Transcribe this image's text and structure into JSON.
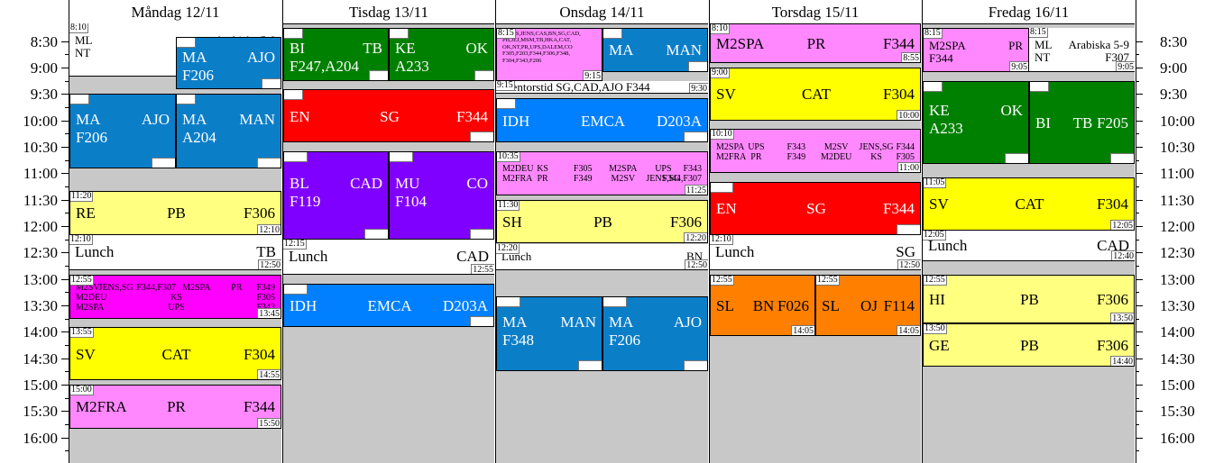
{
  "days": [
    {
      "label": "Måndag 12/11"
    },
    {
      "label": "Tisdag 13/11"
    },
    {
      "label": "Onsdag 14/11"
    },
    {
      "label": "Torsdag 15/11"
    },
    {
      "label": "Fredag 16/11"
    }
  ],
  "times": [
    "8:30",
    "9:00",
    "9:30",
    "10:00",
    "10:30",
    "11:00",
    "11:30",
    "12:00",
    "12:30",
    "13:00",
    "13:30",
    "14:00",
    "14:30",
    "15:00",
    "15:30",
    "16:00"
  ],
  "colors": {
    "blue": "#0b7ec8",
    "green": "#008000",
    "red": "#ff0000",
    "pink": "#ff88ff",
    "yellow": "#ffff80",
    "brightyellow": "#ffff00",
    "purple": "#8000ff",
    "magenta": "#ff00ff",
    "azure": "#0080ff",
    "orange": "#ff8000",
    "white": "#ffffff"
  },
  "events": [
    {
      "day": 0,
      "start": "8:10",
      "end": "9:10",
      "color": "white",
      "lines": [
        {
          "c": [
            "ML",
            "Arabiska 5-9"
          ]
        },
        {
          "c": [
            "NT",
            "F307"
          ]
        }
      ],
      "size": "m"
    },
    {
      "day": 0,
      "start": "8:25",
      "end": "9:25",
      "color": "blue",
      "lines": [
        {
          "c": [
            "MA",
            "AJO"
          ]
        },
        {
          "c": [
            "F206"
          ]
        }
      ],
      "size": "l",
      "half": "right"
    },
    {
      "day": 0,
      "start": "9:30",
      "end": "10:55",
      "color": "blue",
      "lines": [
        {
          "c": [
            "MA",
            "AJO"
          ]
        },
        {
          "c": [
            "F206"
          ]
        }
      ],
      "size": "l",
      "half": "left"
    },
    {
      "day": 0,
      "start": "9:30",
      "end": "10:55",
      "color": "blue",
      "lines": [
        {
          "c": [
            "MA",
            "MAN"
          ]
        },
        {
          "c": [
            "A204"
          ]
        }
      ],
      "size": "l",
      "half": "right"
    },
    {
      "day": 0,
      "start": "11:20",
      "end": "12:10",
      "color": "yellow",
      "lines": [
        {
          "c": [
            "RE",
            "PB",
            "F306"
          ]
        }
      ],
      "size": "l"
    },
    {
      "day": 0,
      "start": "12:10",
      "end": "12:50",
      "color": "white",
      "lines": [
        {
          "c": [
            "Lunch",
            "TB"
          ]
        }
      ],
      "size": "l"
    },
    {
      "day": 0,
      "start": "12:55",
      "end": "13:45",
      "color": "magenta",
      "lines": [
        {
          "c": [
            "M2SV",
            "JENS,SG",
            "F344,F307",
            "M2SPA",
            "PR",
            "F349"
          ]
        },
        {
          "c": [
            "M2DEU",
            "KS",
            "F305"
          ]
        },
        {
          "c": [
            "M2SPA",
            "UPS",
            "F343"
          ]
        }
      ],
      "size": "sm"
    },
    {
      "day": 0,
      "start": "13:55",
      "end": "14:55",
      "color": "brightyellow",
      "lines": [
        {
          "c": [
            "SV",
            "CAT",
            "F304"
          ]
        }
      ],
      "size": "l"
    },
    {
      "day": 0,
      "start": "15:00",
      "end": "15:50",
      "color": "pink",
      "lines": [
        {
          "c": [
            "M2FRA",
            "PR",
            "F344"
          ]
        }
      ],
      "size": "l"
    },
    {
      "day": 1,
      "start": "8:15",
      "end": "9:15",
      "color": "green",
      "lines": [
        {
          "c": [
            "BI",
            "TB"
          ]
        },
        {
          "c": [
            "F247,A204"
          ]
        }
      ],
      "size": "l",
      "half": "left"
    },
    {
      "day": 1,
      "start": "8:15",
      "end": "9:15",
      "color": "green",
      "lines": [
        {
          "c": [
            "KE",
            "OK"
          ]
        },
        {
          "c": [
            "A233"
          ]
        }
      ],
      "size": "l",
      "half": "right"
    },
    {
      "day": 1,
      "start": "9:25",
      "end": "10:25",
      "color": "red",
      "lines": [
        {
          "c": [
            "EN",
            "SG",
            "F344"
          ]
        }
      ],
      "size": "l"
    },
    {
      "day": 1,
      "start": "10:35",
      "end": "12:15",
      "color": "purple",
      "lines": [
        {
          "c": [
            "BL",
            "CAD"
          ]
        },
        {
          "c": [
            "F119"
          ]
        }
      ],
      "size": "l",
      "half": "left"
    },
    {
      "day": 1,
      "start": "10:35",
      "end": "12:15",
      "color": "purple",
      "lines": [
        {
          "c": [
            "MU",
            "CO"
          ]
        },
        {
          "c": [
            "F104"
          ]
        }
      ],
      "size": "l",
      "half": "right"
    },
    {
      "day": 1,
      "start": "12:15",
      "end": "12:55",
      "color": "white",
      "lines": [
        {
          "c": [
            "Lunch",
            "CAD"
          ]
        }
      ],
      "size": "l"
    },
    {
      "day": 1,
      "start": "13:05",
      "end": "13:55",
      "color": "azure",
      "lines": [
        {
          "c": [
            "IDH",
            "EMCA",
            "D203A"
          ]
        }
      ],
      "size": "l"
    },
    {
      "day": 2,
      "start": "8:15",
      "end": "9:15",
      "color": "pink",
      "lines": [
        {
          "c": [
            "EV KS,JENS,CAS,BN,SG,CAD,"
          ]
        },
        {
          "c": [
            "PB,JEJ,MSM,TB,HKA,CAT,"
          ]
        },
        {
          "c": [
            "OK,NT,PR,UPS,DALEM,CO"
          ]
        },
        {
          "c": [
            "F305,F203,F344,F306,F348,"
          ]
        },
        {
          "c": [
            "F304,F343,F206"
          ]
        }
      ],
      "size": "xs",
      "half": "left"
    },
    {
      "day": 2,
      "start": "8:15",
      "end": "9:05",
      "color": "blue",
      "lines": [
        {
          "c": [
            "MA",
            "MAN"
          ]
        }
      ],
      "size": "l",
      "half": "right"
    },
    {
      "day": 2,
      "start": "9:15",
      "end": "9:30",
      "color": "white",
      "lines": [
        {
          "c": [
            "Mentorstid SG,CAD,AJO F344"
          ]
        }
      ],
      "size": "m"
    },
    {
      "day": 2,
      "start": "9:35",
      "end": "10:25",
      "color": "azure",
      "lines": [
        {
          "c": [
            "IDH",
            "EMCA",
            "D203A"
          ]
        }
      ],
      "size": "l"
    },
    {
      "day": 2,
      "start": "10:35",
      "end": "11:25",
      "color": "pink",
      "lines": [
        {
          "c": [
            "M2DEU",
            "KS",
            "F305",
            "M2SPA",
            "UPS",
            "F343"
          ]
        },
        {
          "c": [
            "M2FRA",
            "PR",
            "F349",
            "M2SV",
            "JENS,SG",
            "F344,F307"
          ]
        }
      ],
      "size": "sm"
    },
    {
      "day": 2,
      "start": "11:30",
      "end": "12:20",
      "color": "yellow",
      "lines": [
        {
          "c": [
            "SH",
            "PB",
            "F306"
          ]
        }
      ],
      "size": "l"
    },
    {
      "day": 2,
      "start": "12:20",
      "end": "12:50",
      "color": "white",
      "lines": [
        {
          "c": [
            "Lunch",
            "BN"
          ]
        }
      ],
      "size": "m"
    },
    {
      "day": 2,
      "start": "13:20",
      "end": "14:45",
      "color": "blue",
      "lines": [
        {
          "c": [
            "MA",
            "MAN"
          ]
        },
        {
          "c": [
            "F348"
          ]
        }
      ],
      "size": "l",
      "half": "left"
    },
    {
      "day": 2,
      "start": "13:20",
      "end": "14:45",
      "color": "blue",
      "lines": [
        {
          "c": [
            "MA",
            "AJO"
          ]
        },
        {
          "c": [
            "F206"
          ]
        }
      ],
      "size": "l",
      "half": "right"
    },
    {
      "day": 3,
      "start": "8:10",
      "end": "8:55",
      "color": "pink",
      "lines": [
        {
          "c": [
            "M2SPA",
            "PR",
            "F344"
          ]
        }
      ],
      "size": "l"
    },
    {
      "day": 3,
      "start": "9:00",
      "end": "10:00",
      "color": "brightyellow",
      "lines": [
        {
          "c": [
            "SV",
            "CAT",
            "F304"
          ]
        }
      ],
      "size": "l"
    },
    {
      "day": 3,
      "start": "10:10",
      "end": "11:00",
      "color": "pink",
      "lines": [
        {
          "c": [
            "M2SPA",
            "UPS",
            "F343",
            "M2SV",
            "JENS,SG",
            "F344"
          ]
        },
        {
          "c": [
            "M2FRA",
            "PR",
            "F349",
            "M2DEU",
            "KS",
            "F305"
          ]
        }
      ],
      "size": "sm"
    },
    {
      "day": 3,
      "start": "11:10",
      "end": "12:10",
      "color": "red",
      "lines": [
        {
          "c": [
            "EN",
            "SG",
            "F344"
          ]
        }
      ],
      "size": "l"
    },
    {
      "day": 3,
      "start": "12:10",
      "end": "12:50",
      "color": "white",
      "lines": [
        {
          "c": [
            "Lunch",
            "SG"
          ]
        }
      ],
      "size": "l"
    },
    {
      "day": 3,
      "start": "12:55",
      "end": "14:05",
      "color": "orange",
      "lines": [
        {
          "c": [
            "SL",
            "BN",
            "F026"
          ]
        }
      ],
      "size": "l",
      "half": "left"
    },
    {
      "day": 3,
      "start": "12:55",
      "end": "14:05",
      "color": "orange",
      "lines": [
        {
          "c": [
            "SL",
            "OJ",
            "F114"
          ]
        }
      ],
      "size": "l",
      "half": "right"
    },
    {
      "day": 4,
      "start": "8:15",
      "end": "9:05",
      "color": "pink",
      "lines": [
        {
          "c": [
            "M2SPA",
            "PR"
          ]
        },
        {
          "c": [
            "F344"
          ]
        }
      ],
      "size": "m",
      "half": "left"
    },
    {
      "day": 4,
      "start": "8:15",
      "end": "9:05",
      "color": "white",
      "lines": [
        {
          "c": [
            "ML",
            "Arabiska 5-9"
          ]
        },
        {
          "c": [
            "NT",
            "F307"
          ]
        }
      ],
      "size": "m",
      "half": "right"
    },
    {
      "day": 4,
      "start": "9:15",
      "end": "10:50",
      "color": "green",
      "lines": [
        {
          "c": [
            "KE",
            "OK"
          ]
        },
        {
          "c": [
            "A233"
          ]
        }
      ],
      "size": "l",
      "half": "left"
    },
    {
      "day": 4,
      "start": "9:15",
      "end": "10:50",
      "color": "green",
      "lines": [
        {
          "c": [
            "BI",
            "TB",
            "F205"
          ]
        }
      ],
      "size": "l",
      "half": "right",
      "valign": "center"
    },
    {
      "day": 4,
      "start": "11:05",
      "end": "12:05",
      "color": "brightyellow",
      "lines": [
        {
          "c": [
            "SV",
            "CAT",
            "F304"
          ]
        }
      ],
      "size": "l"
    },
    {
      "day": 4,
      "start": "12:05",
      "end": "12:40",
      "color": "white",
      "lines": [
        {
          "c": [
            "Lunch",
            "CAD"
          ]
        }
      ],
      "size": "l"
    },
    {
      "day": 4,
      "start": "12:55",
      "end": "13:50",
      "color": "yellow",
      "lines": [
        {
          "c": [
            "HI",
            "PB",
            "F306"
          ]
        }
      ],
      "size": "l"
    },
    {
      "day": 4,
      "start": "13:50",
      "end": "14:40",
      "color": "yellow",
      "lines": [
        {
          "c": [
            "GE",
            "PB",
            "F306"
          ]
        }
      ],
      "size": "l"
    }
  ]
}
